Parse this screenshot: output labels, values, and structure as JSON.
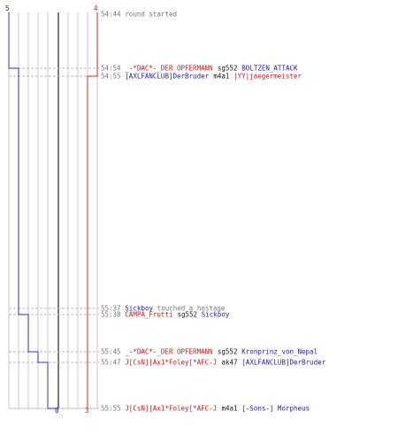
{
  "colors": {
    "team_blue": "#2d2dcc",
    "team_red": "#dd2222",
    "team_blue_text": "#1b1bb5",
    "team_red_text": "#cc1a1a",
    "meta_text": "#777777",
    "weapon_text": "#111111",
    "grid_line": "#c8c8c8",
    "center_line": "#7a7a7a"
  },
  "scores": {
    "blue_start": "5",
    "red_start": "4",
    "blue_end": "0",
    "red_end": "3"
  },
  "events": [
    {
      "time": "54:44",
      "parts": [
        {
          "text": "round started",
          "style": "meta"
        }
      ]
    },
    {
      "time": "54:54",
      "parts": [
        {
          "text": "_-*DAC*-_DER OPFERMANN",
          "style": "red"
        },
        {
          "text": "sg552",
          "style": "weapon"
        },
        {
          "text": "BOLTZEN_ATTACK",
          "style": "blue"
        }
      ]
    },
    {
      "time": "54:55",
      "parts": [
        {
          "text": "[AXLFANCLUB]DerBruder",
          "style": "blue"
        },
        {
          "text": "m4a1",
          "style": "weapon"
        },
        {
          "text": "|YY|jaegermeister",
          "style": "red"
        }
      ]
    },
    {
      "time": "55:37",
      "parts": [
        {
          "text": "Sickboy",
          "style": "blue"
        },
        {
          "text": "touched a hostage",
          "style": "meta"
        }
      ]
    },
    {
      "time": "55:38",
      "parts": [
        {
          "text": "CAMPA_Frutti",
          "style": "red"
        },
        {
          "text": "sg552",
          "style": "weapon"
        },
        {
          "text": "Sickboy",
          "style": "blue"
        }
      ]
    },
    {
      "time": "55:45",
      "parts": [
        {
          "text": "_-*DAC*-_DER OPFERMANN",
          "style": "red"
        },
        {
          "text": "sg552",
          "style": "weapon"
        },
        {
          "text": "Kronprinz_von_Nepal",
          "style": "blue"
        }
      ]
    },
    {
      "time": "55:47",
      "parts": [
        {
          "text": "J[CsN][Ax1*Foley[*AFC-J",
          "style": "red"
        },
        {
          "text": "ak47",
          "style": "weapon"
        },
        {
          "text": "[AXLFANCLUB]DerBruder",
          "style": "blue"
        }
      ]
    },
    {
      "time": "55:55",
      "parts": [
        {
          "text": "J[CsN][Ax1*Foley[*AFC-J",
          "style": "red"
        },
        {
          "text": "m4a1",
          "style": "weapon"
        },
        {
          "text": "[-Sons-] Morpheus",
          "style": "blue"
        }
      ]
    }
  ]
}
